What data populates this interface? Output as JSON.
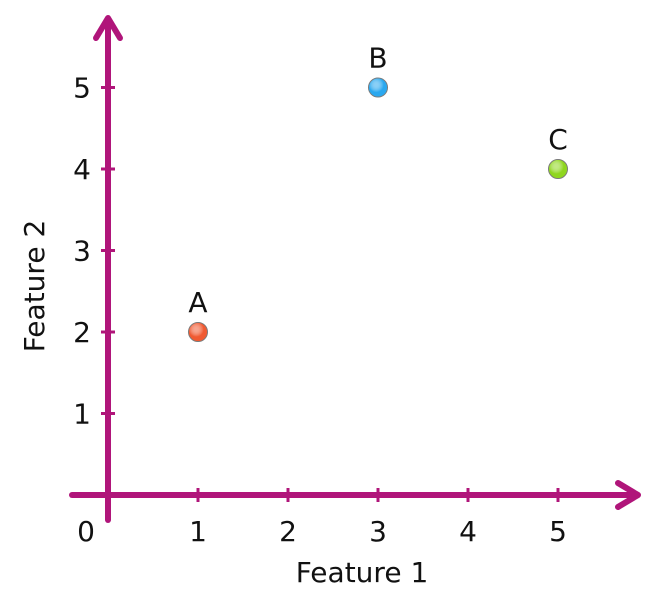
{
  "chart_data": {
    "type": "scatter",
    "title": "",
    "xlabel": "Feature 1",
    "ylabel": "Feature 2",
    "xlim": [
      0,
      5.9
    ],
    "ylim": [
      0,
      5.9
    ],
    "origin_label": "0",
    "x_ticks": [
      1,
      2,
      3,
      4,
      5
    ],
    "y_ticks": [
      1,
      2,
      3,
      4,
      5
    ],
    "grid": false,
    "axis_color": "#b0157a",
    "points": [
      {
        "label": "A",
        "x": 1,
        "y": 2,
        "color": "#f05a32"
      },
      {
        "label": "B",
        "x": 3,
        "y": 5,
        "color": "#2aa8ef"
      },
      {
        "label": "C",
        "x": 5,
        "y": 4,
        "color": "#8fd61f"
      }
    ]
  }
}
